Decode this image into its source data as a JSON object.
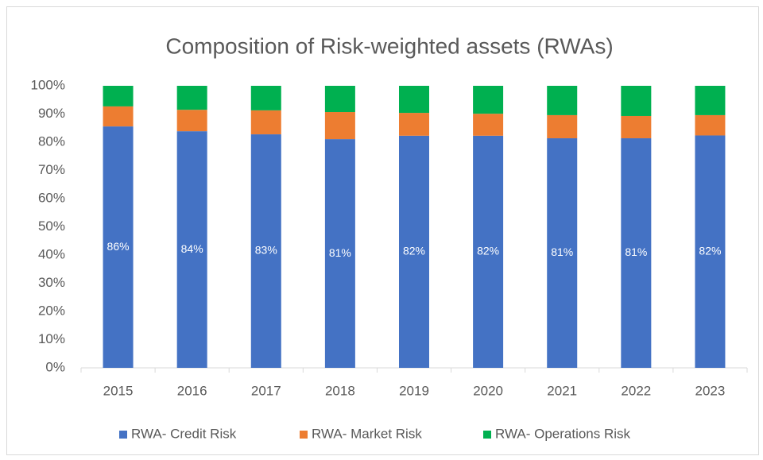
{
  "chart_data": {
    "type": "stacked_bar",
    "title": "Composition of Risk-weighted assets (RWAs)",
    "categories": [
      "2015",
      "2016",
      "2017",
      "2018",
      "2019",
      "2020",
      "2021",
      "2022",
      "2023"
    ],
    "series": [
      {
        "name": "RWA- Credit Risk",
        "color": "#4472c4",
        "values": [
          85.6,
          83.9,
          82.8,
          81.1,
          82.3,
          82.3,
          81.4,
          81.4,
          82.4
        ],
        "value_labels": [
          "86%",
          "84%",
          "83%",
          "81%",
          "82%",
          "82%",
          "81%",
          "81%",
          "82%"
        ]
      },
      {
        "name": "RWA- Market Risk",
        "color": "#ed7d31",
        "values": [
          7.1,
          7.6,
          8.5,
          9.6,
          8.1,
          7.8,
          8.2,
          7.9,
          7.2
        ]
      },
      {
        "name": "RWA- Operations Risk",
        "color": "#00b050",
        "values": [
          7.3,
          8.5,
          8.7,
          9.3,
          9.6,
          9.9,
          10.4,
          10.7,
          10.4
        ]
      }
    ],
    "ylim": [
      0,
      100
    ],
    "yticks": [
      {
        "value": 0,
        "label": "0%"
      },
      {
        "value": 10,
        "label": "10%"
      },
      {
        "value": 20,
        "label": "20%"
      },
      {
        "value": 30,
        "label": "30%"
      },
      {
        "value": 40,
        "label": "40%"
      },
      {
        "value": 50,
        "label": "50%"
      },
      {
        "value": 60,
        "label": "60%"
      },
      {
        "value": 70,
        "label": "70%"
      },
      {
        "value": 80,
        "label": "80%"
      },
      {
        "value": 90,
        "label": "90%"
      },
      {
        "value": 100,
        "label": "100%"
      }
    ],
    "legend": "bottom"
  }
}
